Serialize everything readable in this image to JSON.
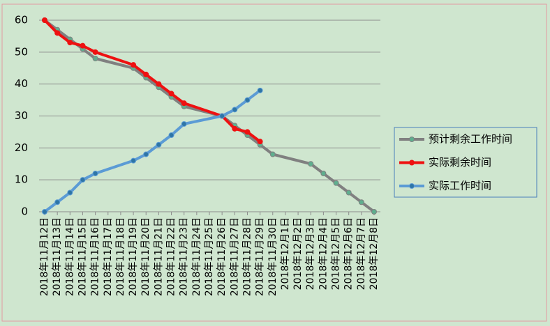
{
  "chart_data": {
    "type": "line",
    "categories": [
      "2018年11月12日",
      "2018年11月13日",
      "2018年11月14日",
      "2018年11月15日",
      "2018年11月16日",
      "2018年11月17日",
      "2018年11月18日",
      "2018年11月19日",
      "2018年11月20日",
      "2018年11月21日",
      "2018年11月22日",
      "2018年11月23日",
      "2018年11月24日",
      "2018年11月25日",
      "2018年11月26日",
      "2018年11月27日",
      "2018年11月28日",
      "2018年11月29日",
      "2018年11月30日",
      "2018年12月1日",
      "2018年12月2日",
      "2018年12月3日",
      "2018年12月4日",
      "2018年12月5日",
      "2018年12月6日",
      "2018年12月7日",
      "2018年12月8日"
    ],
    "series": [
      {
        "name": "预计剩余工作时间",
        "color": "#808080",
        "marker_color": "#5fae8e",
        "values": [
          60,
          57,
          54,
          51,
          48,
          null,
          null,
          45,
          42,
          39,
          36,
          33,
          null,
          null,
          30,
          27,
          24,
          21,
          18,
          null,
          null,
          15,
          12,
          9,
          6,
          3,
          0
        ]
      },
      {
        "name": "实际剩余时间",
        "color": "#ee1111",
        "marker_color": "#ee1111",
        "values": [
          60,
          56,
          53,
          52,
          50,
          null,
          null,
          46,
          43,
          40,
          37,
          34,
          null,
          null,
          30,
          26,
          25,
          22,
          null,
          null,
          null,
          null,
          null,
          null,
          null,
          null,
          null
        ]
      },
      {
        "name": "实际工作时间",
        "color": "#5b9bd5",
        "marker_color": "#2e75a6",
        "values": [
          0,
          3,
          6,
          10,
          12,
          null,
          null,
          16,
          18,
          21,
          24,
          27.5,
          null,
          null,
          30,
          32,
          35,
          38,
          null,
          null,
          null,
          null,
          null,
          null,
          null,
          null,
          null
        ]
      }
    ],
    "ylim": [
      0,
      60
    ],
    "yticks": [
      0,
      10,
      20,
      30,
      40,
      50,
      60
    ],
    "grid": true,
    "legend": "right",
    "span_gaps": true
  }
}
